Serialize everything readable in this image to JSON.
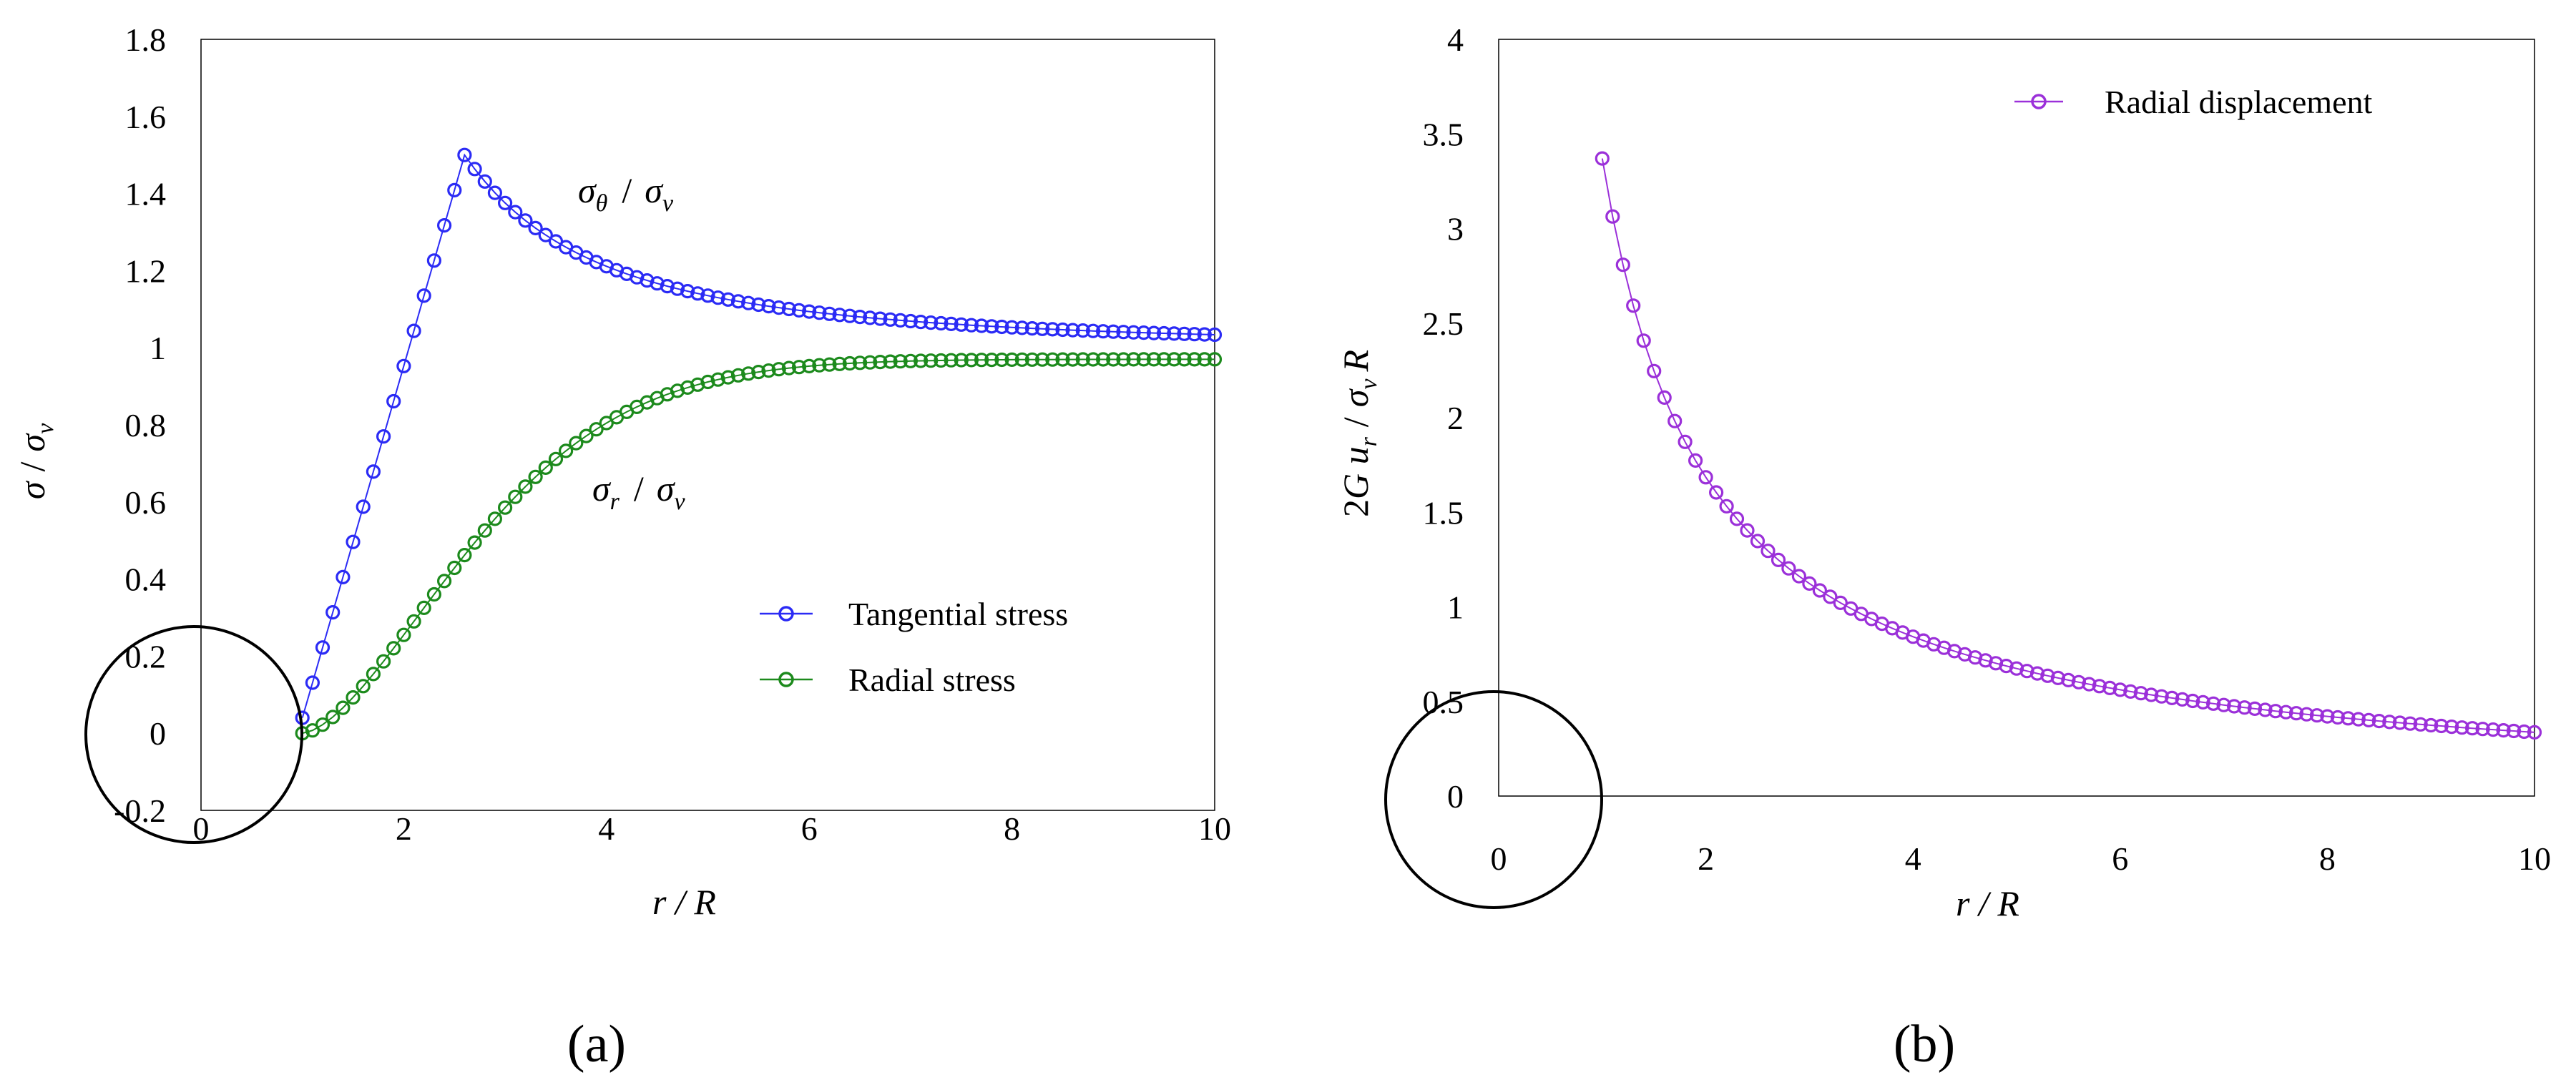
{
  "chart_data": [
    {
      "type": "line",
      "panel_label": "(a)",
      "xlabel": "r / R",
      "ylabel": "σ / σ_v",
      "xlim": [
        0,
        10
      ],
      "ylim": [
        -0.2,
        1.8
      ],
      "xticks": [
        "0",
        "2",
        "4",
        "6",
        "8",
        "10"
      ],
      "yticks": [
        "-0.2",
        "0",
        "0.2",
        "0.4",
        "0.6",
        "0.8",
        "1",
        "1.2",
        "1.4",
        "1.6",
        "1.8"
      ],
      "legend_position": "bottom-right",
      "series": [
        {
          "name": "Tangential stress",
          "color": "#2b2bf5",
          "marker": "circle",
          "curve_label": "σθ / σv",
          "formula_note": "linear rise from r=1 to peak 1.5 at r≈2.6, then 1 + 0.5·(2.6/r)^2"
        },
        {
          "name": "Radial stress",
          "color": "#1c8a1c",
          "marker": "circle",
          "curve_label": "σr / σv",
          "formula_note": "rises from 0 at r=1 toward ≈0.97 at r=10"
        }
      ]
    },
    {
      "type": "line",
      "panel_label": "(b)",
      "xlabel": "r / R",
      "ylabel": "2G u_r / σ_v R",
      "xlim": [
        0,
        10
      ],
      "ylim": [
        0,
        4
      ],
      "xticks": [
        "0",
        "2",
        "4",
        "6",
        "8",
        "10"
      ],
      "yticks": [
        "0",
        "0.5",
        "1",
        "1.5",
        "2",
        "2.5",
        "3",
        "3.5",
        "4"
      ],
      "legend_position": "top-right",
      "series": [
        {
          "name": "Radial displacement",
          "color": "#9b30d9",
          "marker": "circle",
          "formula_note": "≈ 3.37 / r, r from 1 to 10"
        }
      ]
    }
  ],
  "labels": {
    "a_sigma_theta": "σ",
    "a_sigma_theta_sub": "θ",
    "a_sigma_r": "σ",
    "a_sigma_r_sub": "r",
    "slash": "/",
    "sigma": "σ",
    "v": "v"
  }
}
